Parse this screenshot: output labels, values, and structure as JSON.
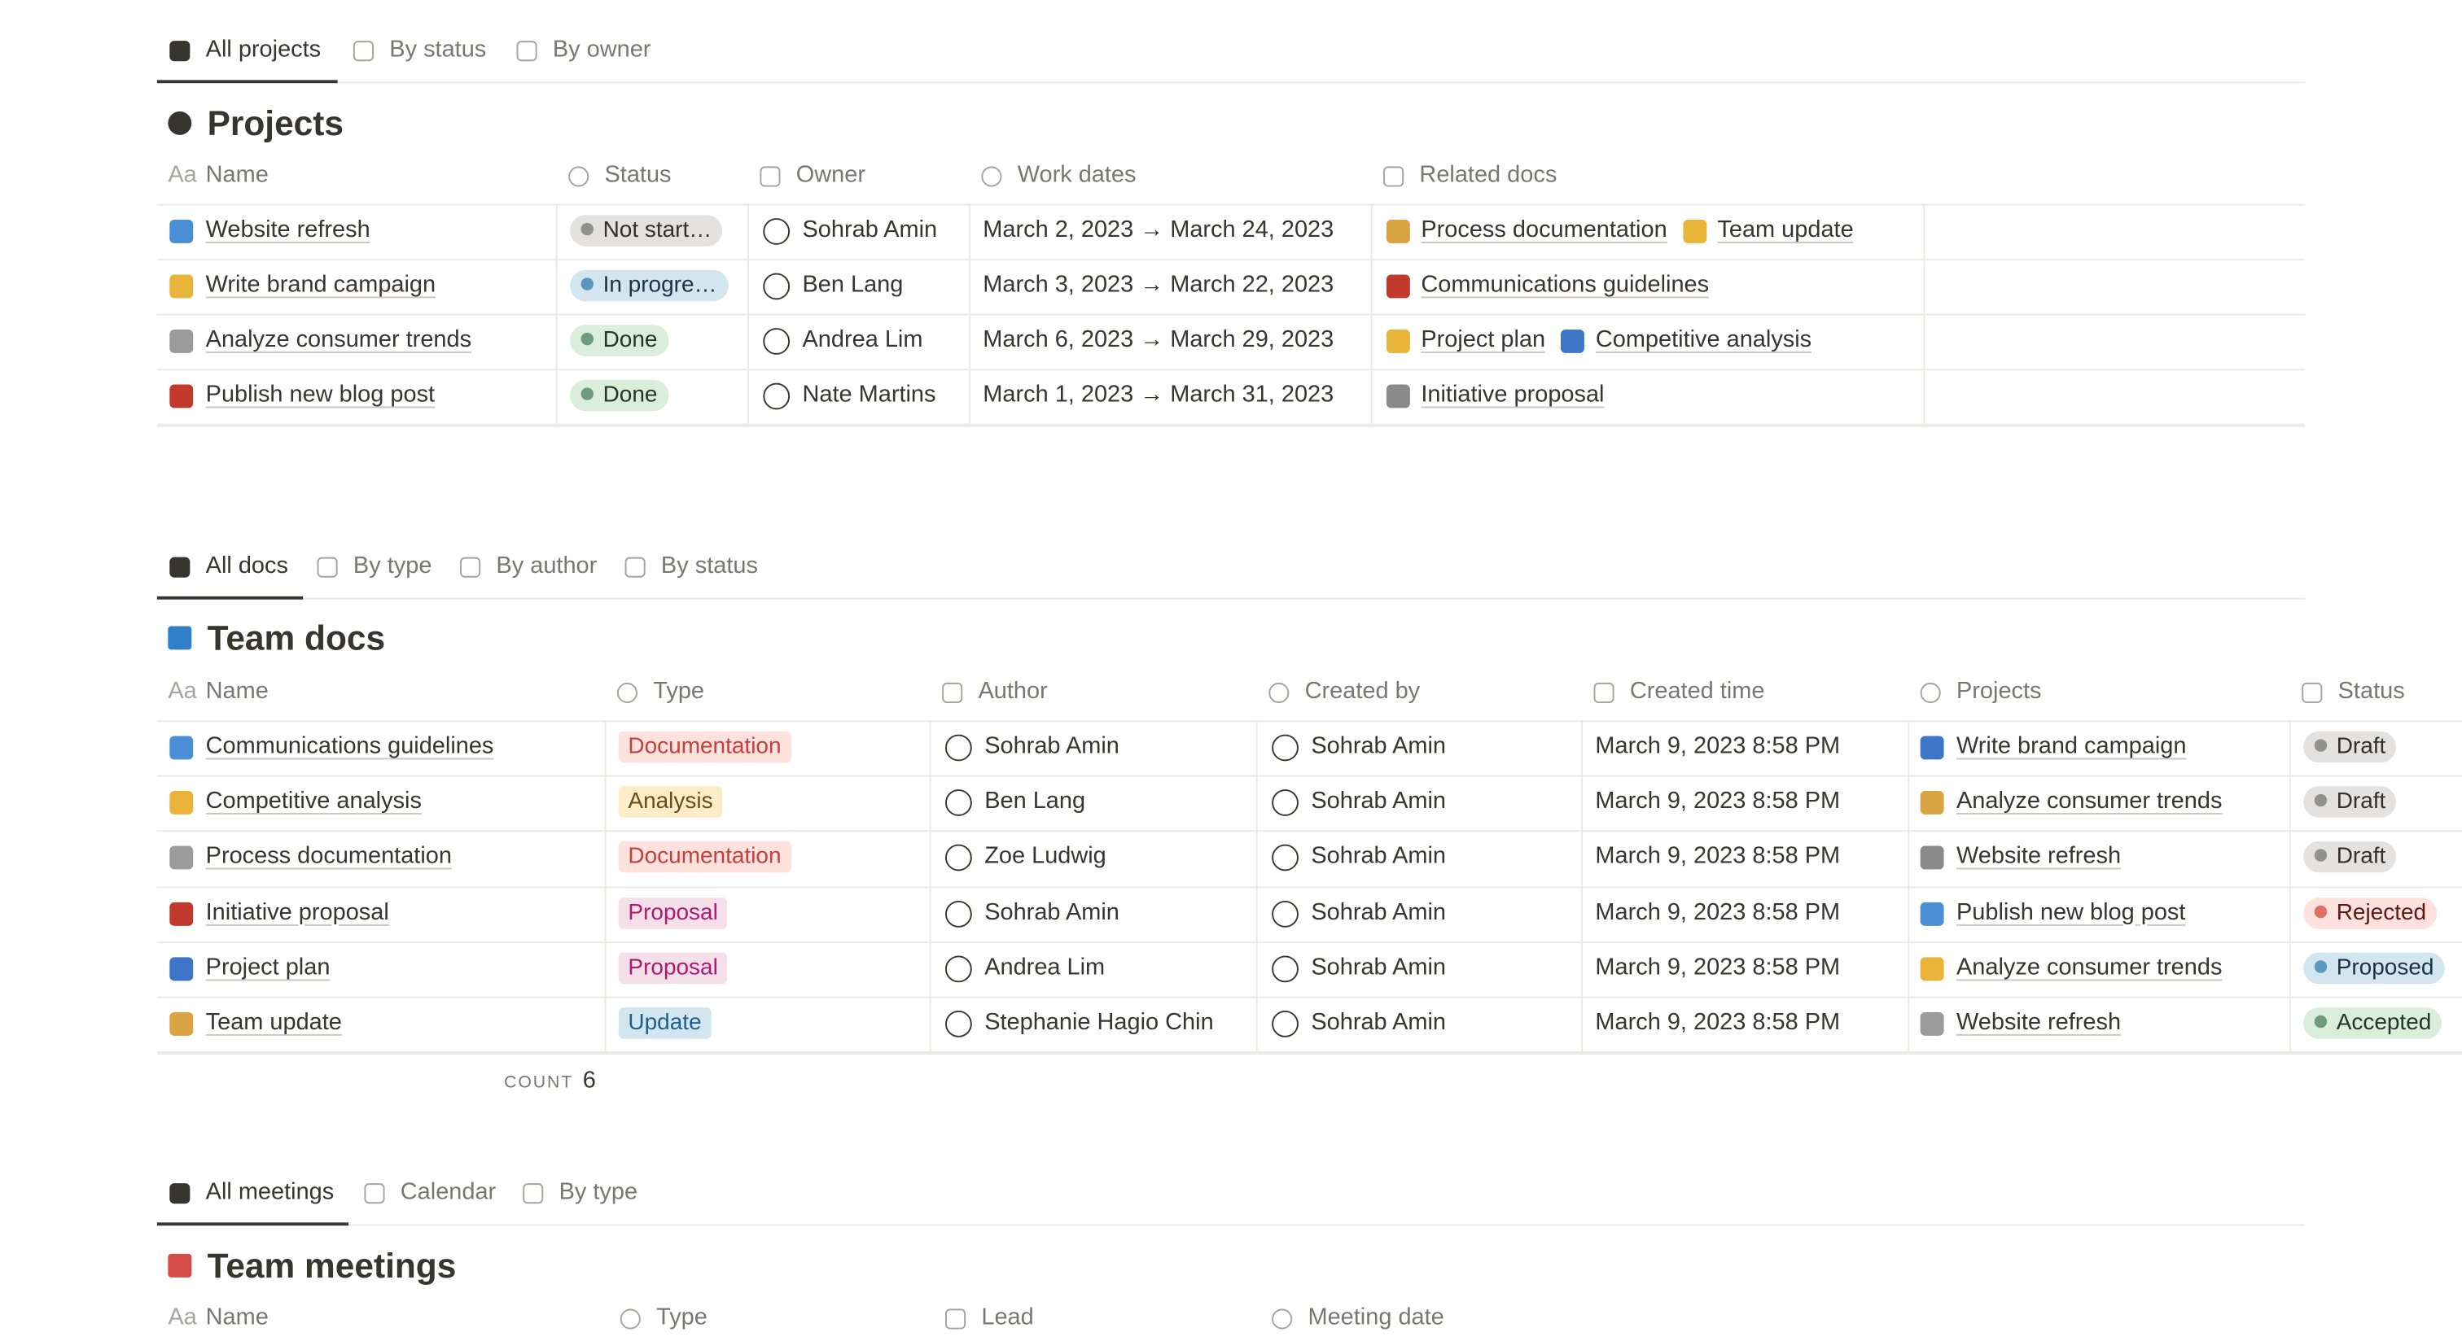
{
  "projects": {
    "tabs": [
      "All projects",
      "By status",
      "By owner"
    ],
    "title": "Projects",
    "name_icon": "Aa",
    "columns": [
      "Name",
      "Status",
      "Owner",
      "Work dates",
      "Related docs"
    ],
    "rows": [
      {
        "name": "Website refresh",
        "status": {
          "label": "Not start…",
          "color": "gray"
        },
        "owner": "Sohrab Amin",
        "dates": "March 2, 2023 → March 24, 2023",
        "docs": [
          "Process documentation",
          "Team update"
        ]
      },
      {
        "name": "Write brand campaign",
        "status": {
          "label": "In progre…",
          "color": "blue"
        },
        "owner": "Ben Lang",
        "dates": "March 3, 2023 → March 22, 2023",
        "docs": [
          "Communications guidelines"
        ]
      },
      {
        "name": "Analyze consumer trends",
        "status": {
          "label": "Done",
          "color": "green"
        },
        "owner": "Andrea Lim",
        "dates": "March 6, 2023 → March 29, 2023",
        "docs": [
          "Project plan",
          "Competitive analysis"
        ]
      },
      {
        "name": "Publish new blog post",
        "status": {
          "label": "Done",
          "color": "green"
        },
        "owner": "Nate Martins",
        "dates": "March 1, 2023 → March 31, 2023",
        "docs": [
          "Initiative proposal"
        ]
      }
    ]
  },
  "docs": {
    "tabs": [
      "All docs",
      "By type",
      "By author",
      "By status"
    ],
    "title": "Team docs",
    "name_icon": "Aa",
    "columns": [
      "Name",
      "Type",
      "Author",
      "Created by",
      "Created time",
      "Projects",
      "Status"
    ],
    "rows": [
      {
        "name": "Communications guidelines",
        "type": {
          "label": "Documentation",
          "color": "red"
        },
        "author": "Sohrab Amin",
        "created_by": "Sohrab Amin",
        "created_time": "March 9, 2023 8:58 PM",
        "project": "Write brand campaign",
        "status": {
          "label": "Draft",
          "color": "gray"
        }
      },
      {
        "name": "Competitive analysis",
        "type": {
          "label": "Analysis",
          "color": "yellow"
        },
        "author": "Ben Lang",
        "created_by": "Sohrab Amin",
        "created_time": "March 9, 2023 8:58 PM",
        "project": "Analyze consumer trends",
        "status": {
          "label": "Draft",
          "color": "gray"
        }
      },
      {
        "name": "Process documentation",
        "type": {
          "label": "Documentation",
          "color": "red"
        },
        "author": "Zoe Ludwig",
        "created_by": "Sohrab Amin",
        "created_time": "March 9, 2023 8:58 PM",
        "project": "Website refresh",
        "status": {
          "label": "Draft",
          "color": "gray"
        }
      },
      {
        "name": "Initiative proposal",
        "type": {
          "label": "Proposal",
          "color": "pink"
        },
        "author": "Sohrab Amin",
        "created_by": "Sohrab Amin",
        "created_time": "March 9, 2023 8:58 PM",
        "project": "Publish new blog post",
        "status": {
          "label": "Rejected",
          "color": "red"
        }
      },
      {
        "name": "Project plan",
        "type": {
          "label": "Proposal",
          "color": "pink"
        },
        "author": "Andrea Lim",
        "created_by": "Sohrab Amin",
        "created_time": "March 9, 2023 8:58 PM",
        "project": "Analyze consumer trends",
        "status": {
          "label": "Proposed",
          "color": "blue"
        }
      },
      {
        "name": "Team update",
        "type": {
          "label": "Update",
          "color": "blue"
        },
        "author": "Stephanie Hagio Chin",
        "created_by": "Sohrab Amin",
        "created_time": "March 9, 2023 8:58 PM",
        "project": "Website refresh",
        "status": {
          "label": "Accepted",
          "color": "green"
        }
      }
    ],
    "count_label": "COUNT",
    "count": 6
  },
  "meetings": {
    "tabs": [
      "All meetings",
      "Calendar",
      "By type"
    ],
    "title": "Team meetings",
    "name_icon": "Aa",
    "columns": [
      "Name",
      "Type",
      "Lead",
      "Meeting date"
    ]
  }
}
